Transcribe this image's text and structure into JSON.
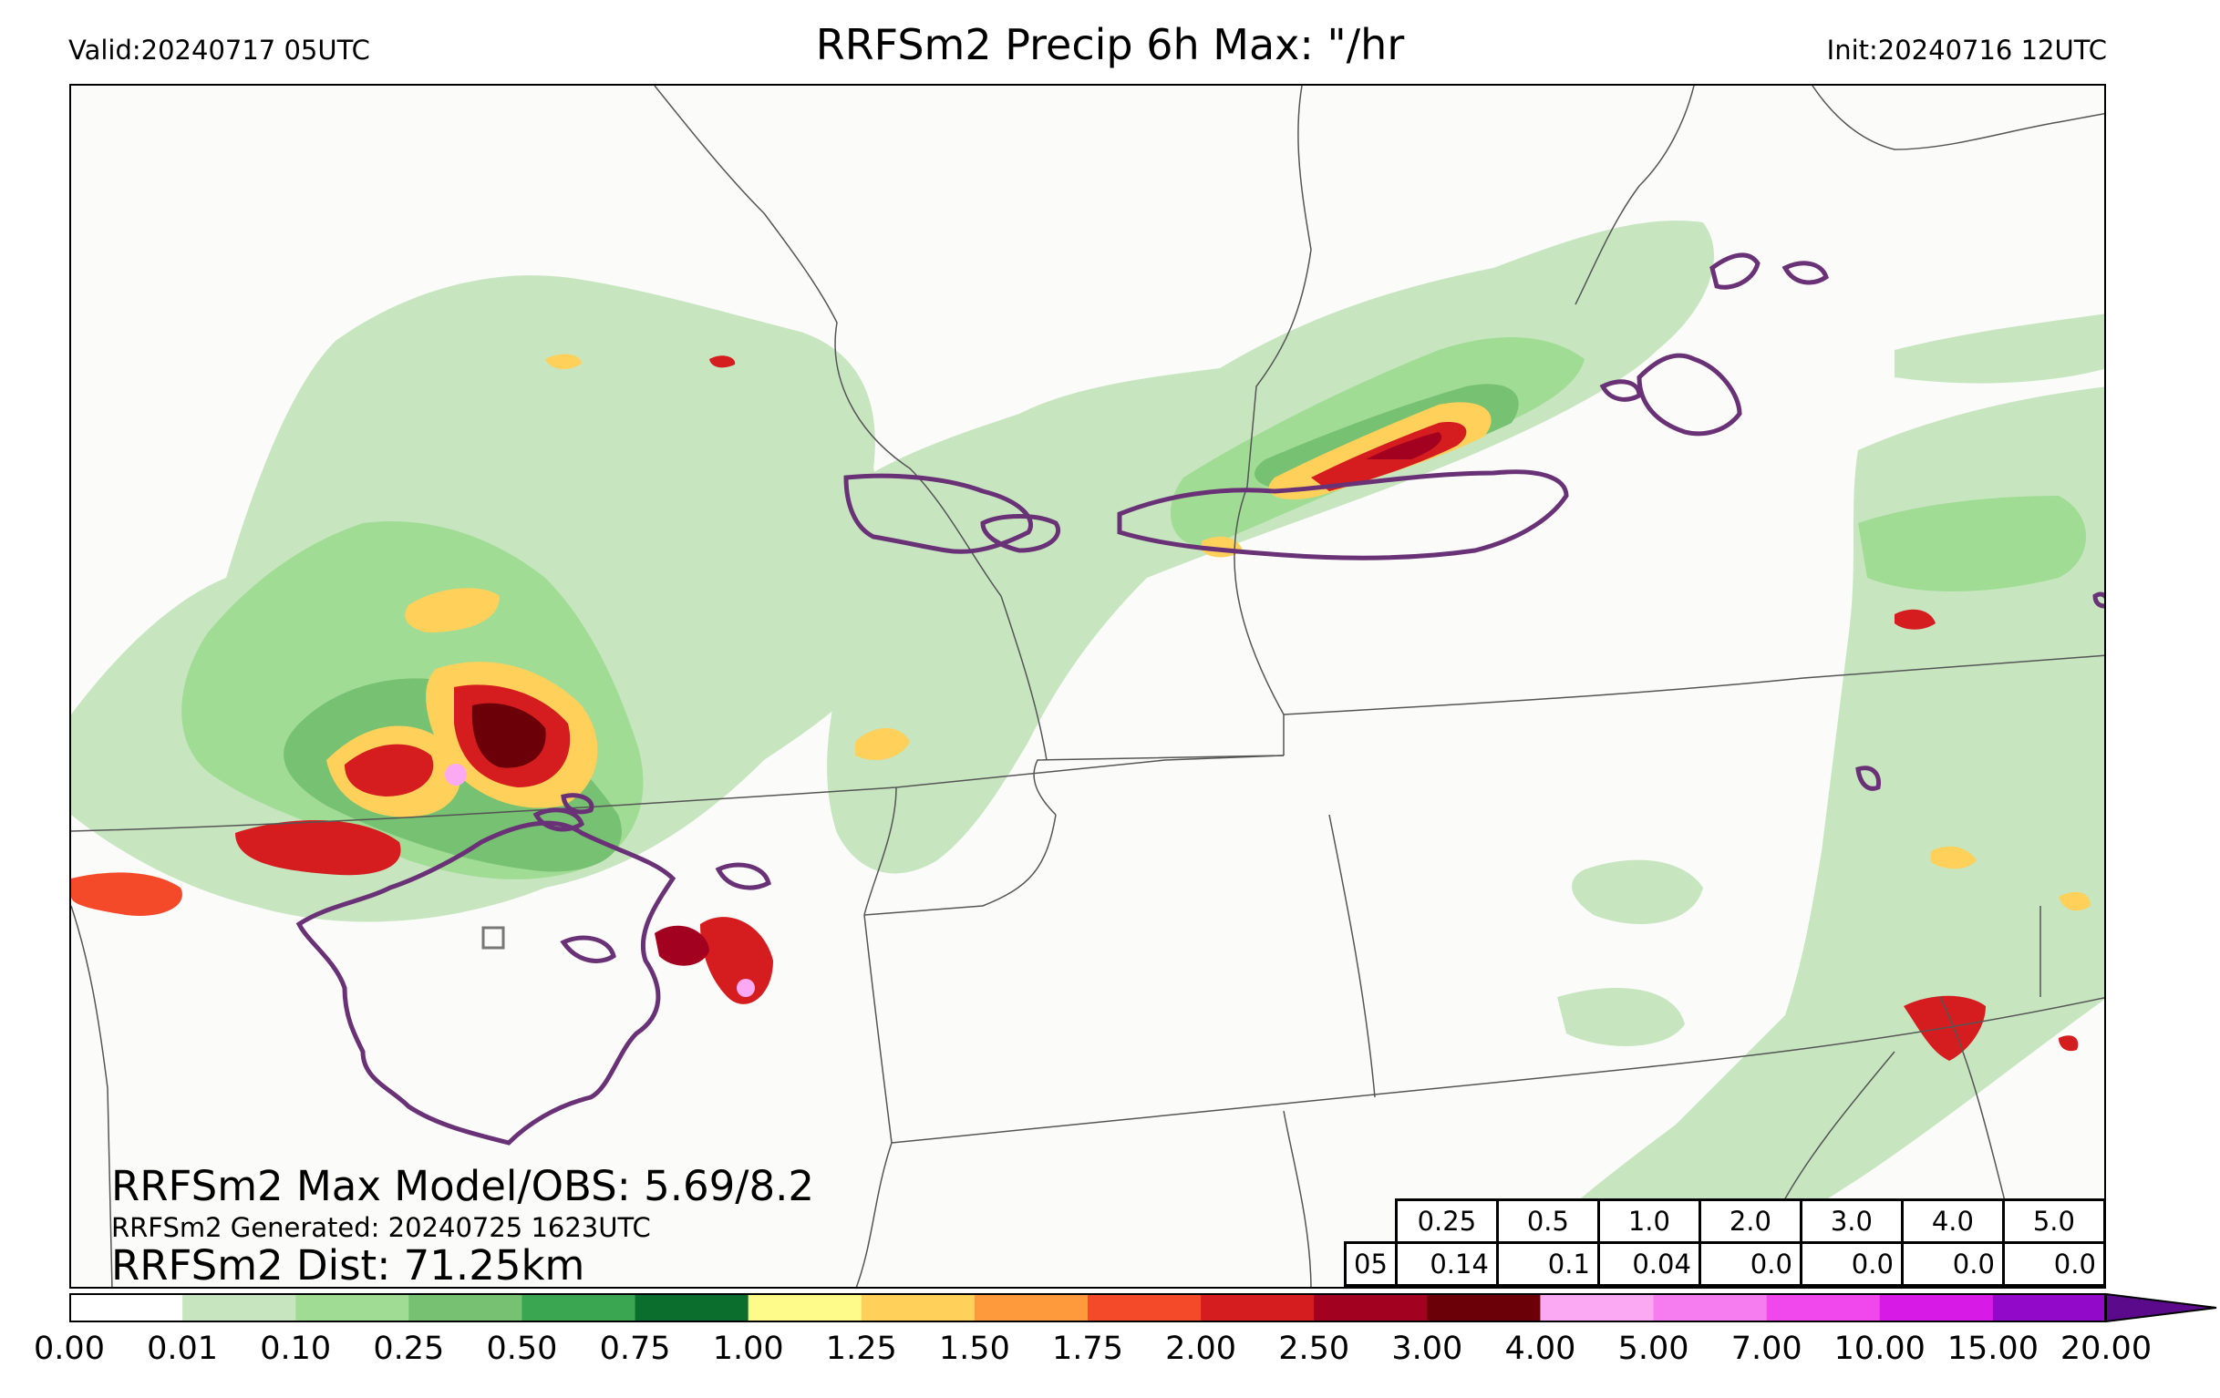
{
  "header": {
    "valid": "Valid:20240717 05UTC",
    "title": "RRFSm2 Precip 6h Max: \"/hr",
    "init": "Init:20240716 12UTC"
  },
  "stats": {
    "max_line": "RRFSm2 Max Model/OBS: 5.69/8.2",
    "generated_line": "RRFSm2 Generated: 20240725 1623UTC",
    "dist_line": "RRFSm2 Dist: 71.25km"
  },
  "threshold_table": {
    "thresholds": [
      "0.25",
      "0.5",
      "1.0",
      "2.0",
      "3.0",
      "4.0",
      "5.0"
    ],
    "hour": "05",
    "values": [
      "0.14",
      "0.1",
      "0.04",
      "0.0",
      "0.0",
      "0.0",
      "0.0"
    ]
  },
  "colorbar": {
    "ticks": [
      "0.00",
      "0.01",
      "0.10",
      "0.25",
      "0.50",
      "0.75",
      "1.00",
      "1.25",
      "1.50",
      "1.75",
      "2.00",
      "2.50",
      "3.00",
      "4.00",
      "5.00",
      "7.00",
      "10.00",
      "15.00",
      "20.00"
    ],
    "colors": [
      "#ffffff",
      "#c7e6c0",
      "#a1dc95",
      "#77c172",
      "#3ba652",
      "#0b6e2c",
      "#fffb8a",
      "#ffd05a",
      "#ff9a3c",
      "#f44a2a",
      "#d51d20",
      "#a2011f",
      "#6b0008",
      "#faa9f2",
      "#f57df0",
      "#f048ec",
      "#d81ae6",
      "#9209c9"
    ],
    "extend_color": "#5a0a8a"
  },
  "colors": {
    "obs_contour": "#6a3276",
    "boundary": "#555555"
  }
}
